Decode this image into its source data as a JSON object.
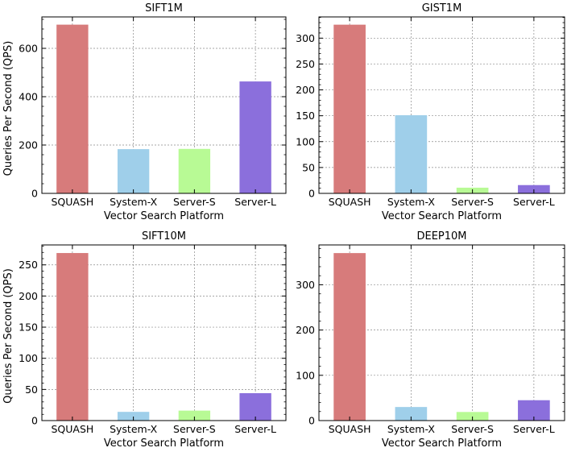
{
  "figure": {
    "colors": [
      "#d77b7b",
      "#9fcfea",
      "#b8fa95",
      "#8b6fdc"
    ]
  },
  "chart_data": [
    {
      "type": "bar",
      "title": "SIFT1M",
      "xlabel": "Vector Search Platform",
      "ylabel": "Queries Per Second (QPS)",
      "categories": [
        "SQUASH",
        "System-X",
        "Server-S",
        "Server-L"
      ],
      "values": [
        698,
        183,
        184,
        463
      ],
      "ylim": [
        0,
        730
      ],
      "yticks": [
        0,
        200,
        400,
        600
      ],
      "grid": true,
      "legend": "none"
    },
    {
      "type": "bar",
      "title": "GIST1M",
      "xlabel": "Vector Search Platform",
      "ylabel": "",
      "categories": [
        "SQUASH",
        "System-X",
        "Server-S",
        "Server-L"
      ],
      "values": [
        326,
        151,
        11,
        16
      ],
      "ylim": [
        0,
        341
      ],
      "yticks": [
        0,
        50,
        100,
        150,
        200,
        250,
        300
      ],
      "grid": true,
      "legend": "none"
    },
    {
      "type": "bar",
      "title": "SIFT10M",
      "xlabel": "Vector Search Platform",
      "ylabel": "Queries Per Second (QPS)",
      "categories": [
        "SQUASH",
        "System-X",
        "Server-S",
        "Server-L"
      ],
      "values": [
        269,
        14,
        16,
        44
      ],
      "ylim": [
        0,
        282
      ],
      "yticks": [
        0,
        50,
        100,
        150,
        200,
        250
      ],
      "grid": true,
      "legend": "none"
    },
    {
      "type": "bar",
      "title": "DEEP10M",
      "xlabel": "Vector Search Platform",
      "ylabel": "",
      "categories": [
        "SQUASH",
        "System-X",
        "Server-S",
        "Server-L"
      ],
      "values": [
        370,
        30,
        19,
        45
      ],
      "ylim": [
        0,
        388
      ],
      "yticks": [
        0,
        100,
        200,
        300
      ],
      "grid": true,
      "legend": "none"
    }
  ]
}
